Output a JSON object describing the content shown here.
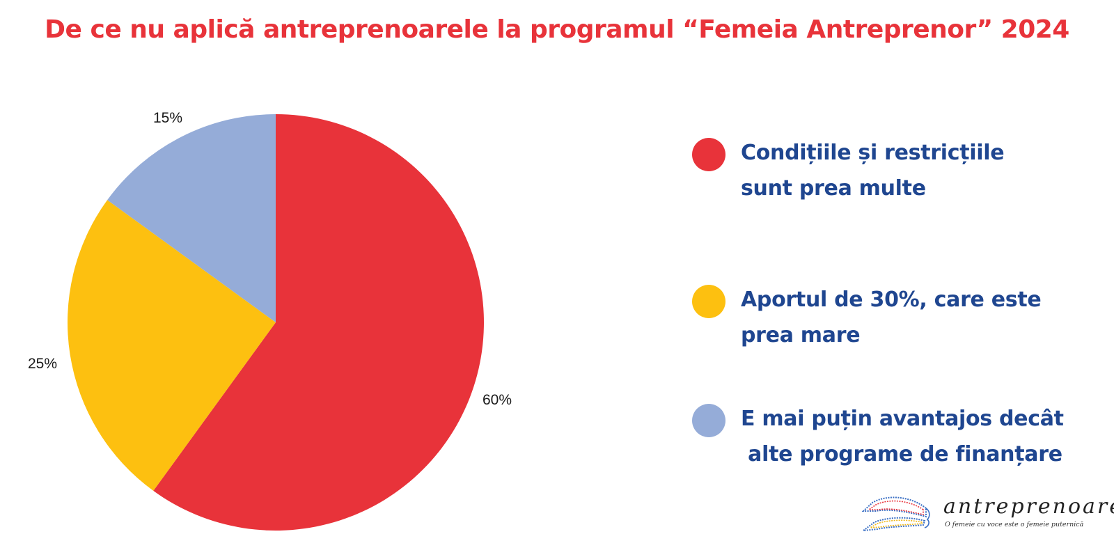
{
  "title": "De ce nu aplică antreprenoarele la programul “Femeia Antreprenor” 2024",
  "chart_data": {
    "type": "pie",
    "title": "De ce nu aplică antreprenoarele la programul “Femeia Antreprenor” 2024",
    "categories": [
      "Condițiile și restricțiile sunt prea multe",
      "Aportul de 30%, care este prea mare",
      "E mai puțin avantajos decât alte programe de finanțare"
    ],
    "values": [
      60,
      25,
      15
    ],
    "labels": [
      "60%",
      "25%",
      "15%"
    ],
    "colors": [
      "#e8333a",
      "#fdc010",
      "#95acd8"
    ],
    "start_angle": "12 o'clock, clockwise",
    "legend_position": "right"
  },
  "legend": [
    {
      "text": "Condițiile și restricțiile\nsunt prea multe",
      "color": "#e8333a"
    },
    {
      "text": "Aportul de 30%, care este\nprea mare",
      "color": "#fdc010"
    },
    {
      "text": "E mai puțin avantajos decât\n alte programe de finanțare",
      "color": "#95acd8"
    }
  ],
  "slice_labels": [
    "60%",
    "25%",
    "15%"
  ],
  "logo": {
    "name": "antreprenoare",
    "tagline": "O femeie cu voce este o femeie puternică"
  }
}
